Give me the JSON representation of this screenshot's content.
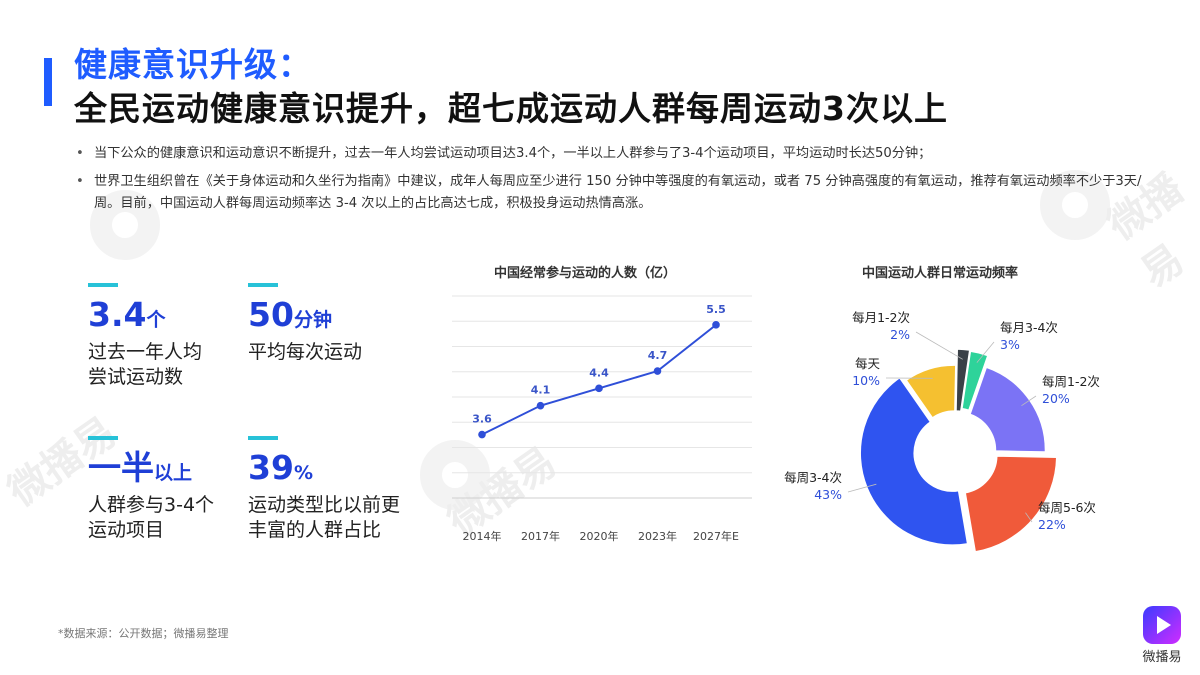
{
  "header": {
    "title_line1": "健康意识升级：",
    "title_line2": "全民运动健康意识提升，超七成运动人群每周运动3次以上"
  },
  "bullets": [
    "当下公众的健康意识和运动意识不断提升，过去一年人均尝试运动项目达3.4个，一半以上人群参与了3-4个运动项目，平均运动时长达50分钟；",
    "世界卫生组织曾在《关于身体运动和久坐行为指南》中建议，成年人每周应至少进行 150 分钟中等强度的有氧运动，或者 75 分钟高强度的有氧运动，推荐有氧运动频率不少于3天/周。目前，中国运动人群每周运动频率达 3-4 次以上的占比高达七成，积极投身运动热情高涨。"
  ],
  "stats": [
    {
      "value": "3.4",
      "unit": "个",
      "desc_line1": "过去一年人均",
      "desc_line2": "尝试运动数"
    },
    {
      "value": "50",
      "unit": "分钟",
      "desc_line1": "平均每次运动",
      "desc_line2": ""
    },
    {
      "value": "一半",
      "unit": "以上",
      "desc_line1": "人群参与3-4个",
      "desc_line2": "运动项目"
    },
    {
      "value": "39",
      "unit": "%",
      "desc_line1": "运动类型比以前更",
      "desc_line2": "丰富的人群占比"
    }
  ],
  "chart_data": [
    {
      "type": "line",
      "title": "中国经常参与运动的人数（亿）",
      "categories": [
        "2014年",
        "2017年",
        "2020年",
        "2023年",
        "2027年E"
      ],
      "values": [
        3.6,
        4.1,
        4.4,
        4.7,
        5.5
      ],
      "ylim": [
        2.5,
        6.0
      ],
      "grid": true,
      "color": "#2f4fd8"
    },
    {
      "type": "pie",
      "title": "中国运动人群日常运动频率",
      "slices": [
        {
          "label": "每月1-2次",
          "value": 2,
          "display": "2%",
          "color": "#3a4047"
        },
        {
          "label": "每月3-4次",
          "value": 3,
          "display": "3%",
          "color": "#2ed39a"
        },
        {
          "label": "每周1-2次",
          "value": 20,
          "display": "20%",
          "color": "#7b73f5"
        },
        {
          "label": "每周5-6次",
          "value": 22,
          "display": "22%",
          "color": "#f05a3a"
        },
        {
          "label": "每周3-4次",
          "value": 43,
          "display": "43%",
          "color": "#2f54f0"
        },
        {
          "label": "每天",
          "value": 10,
          "display": "10%",
          "color": "#f5c030"
        }
      ]
    }
  ],
  "footer": {
    "source": "*数据来源：公开数据；微播易整理",
    "logo_text": "微播易"
  },
  "watermark": "微播易"
}
